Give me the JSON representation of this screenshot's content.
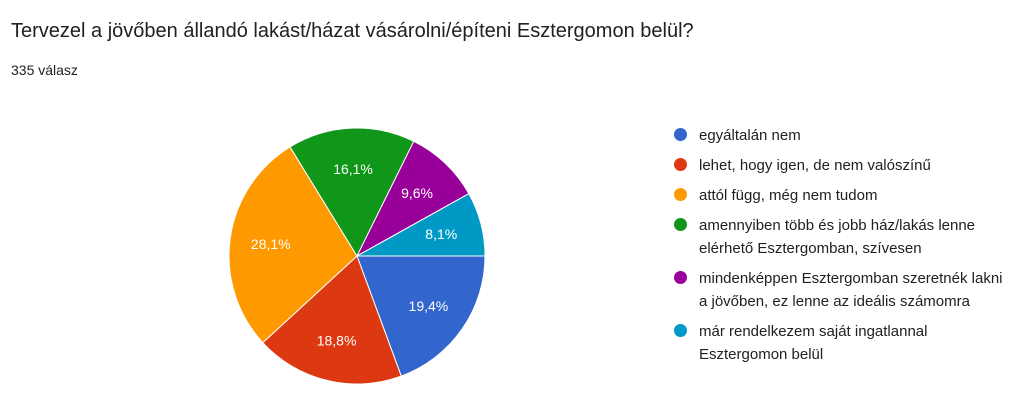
{
  "question": {
    "title": "Tervezel a jövőben állandó lakást/házat vásárolni/építeni Esztergomon belül?",
    "response_count": "335 válasz"
  },
  "chart_data": {
    "type": "pie",
    "categories": [
      "egyáltalán nem",
      "lehet, hogy igen, de nem valószínű",
      "attól függ, még nem tudom",
      "amennyiben több és jobb ház/lakás lenne elérhető Esztergomban, szívesen",
      "mindenképpen Esztergomban szeretnék lakni a jövőben, ez lenne az ideális számomra",
      "már rendelkezem saját ingatlannal Esztergomon belül"
    ],
    "values": [
      19.4,
      18.8,
      28.1,
      16.1,
      9.6,
      8.1
    ],
    "value_labels": [
      "19,4%",
      "18,8%",
      "28,1%",
      "16,1%",
      "9,6%",
      "8,1%"
    ],
    "colors": [
      "#3366cc",
      "#dc3912",
      "#ff9900",
      "#109618",
      "#990099",
      "#0099c6"
    ],
    "start_angle_deg": 90,
    "direction": "clockwise",
    "legend_position": "right"
  }
}
